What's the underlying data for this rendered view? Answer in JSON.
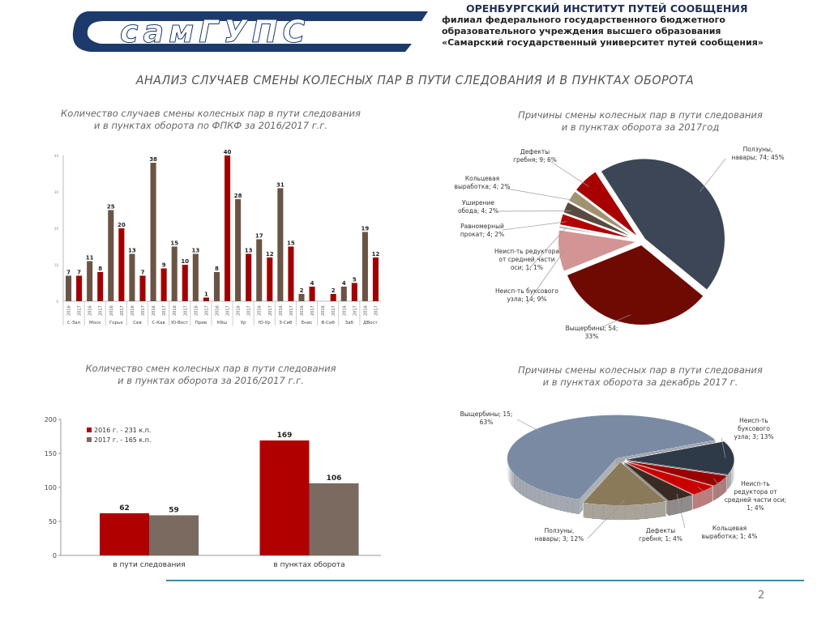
{
  "header": {
    "logo_text": "СамГУПС",
    "institute": "ОРЕНБУРГСКИЙ ИНСТИТУТ ПУТЕЙ СООБЩЕНИЯ",
    "lines": [
      "филиал федерального государственного бюджетного",
      "образовательного учреждения высшего образования",
      "«Самарский государственный университет путей сообщения»"
    ]
  },
  "slide_title": "АНАЛИЗ СЛУЧАЕВ СМЕНЫ КОЛЕСНЫХ ПАР В ПУТИ СЛЕДОВАНИЯ И В ПУНКТАХ ОБОРОТА",
  "page_number": "2",
  "colors": {
    "y2016": "#6b5444",
    "y2017": "#a00000",
    "accent_line": "#3b8ea5"
  },
  "chart_data": [
    {
      "type": "bar",
      "title": [
        "Количество случаев смены колесных пар в пути следования",
        "и в пунктах оборота по ФПКФ за 2016/2017 г.г."
      ],
      "categories": [
        "С-Зап",
        "Моск",
        "Горьк",
        "Сев",
        "С-Кав",
        "Ю-Вост",
        "Прив",
        "Кбш",
        "Ур",
        "Ю-Ур",
        "З-Сиб",
        "Енис",
        "В-Сиб",
        "Заб",
        "ДВост"
      ],
      "sub_labels": [
        "2016",
        "2017"
      ],
      "series": [
        {
          "name": "2016",
          "values": [
            7,
            11,
            25,
            13,
            38,
            15,
            13,
            8,
            28,
            17,
            31,
            2,
            null,
            4,
            19
          ]
        },
        {
          "name": "2017",
          "values": [
            7,
            8,
            20,
            7,
            9,
            10,
            1,
            40,
            13,
            12,
            15,
            4,
            2,
            5,
            12
          ]
        }
      ],
      "ylim": [
        0,
        40
      ],
      "yticks": [
        0,
        10,
        20,
        30,
        40
      ]
    },
    {
      "type": "pie",
      "title": [
        "Причины смены колесных пар в пути следования",
        "и в пунктах оборота за 2017год"
      ],
      "slices": [
        {
          "label": [
            "Ползуны,",
            "навары; 74; 45%"
          ],
          "value": 74,
          "color": "#3d4656"
        },
        {
          "label": [
            "Выщербины; 54;",
            "33%"
          ],
          "value": 54,
          "color": "#6e0a02"
        },
        {
          "label": [
            "Неисп-ть буксового",
            "узла; 14; 9%"
          ],
          "value": 14,
          "color": "#d29494"
        },
        {
          "label": [
            "Неисп-ть  редуктора",
            "от средней части",
            "оси; 1; 1%"
          ],
          "value": 1,
          "color": "#a8a8a8"
        },
        {
          "label": [
            "Равномерный",
            "прокат; 4; 2%"
          ],
          "value": 4,
          "color": "#b00000"
        },
        {
          "label": [
            "Уширение",
            "обода; 4; 2%"
          ],
          "value": 4,
          "color": "#5a4a40"
        },
        {
          "label": [
            "Кольцевая",
            "выработка; 4; 2%"
          ],
          "value": 4,
          "color": "#a39270"
        },
        {
          "label": [
            "Дефекты",
            "гребня; 9; 6%"
          ],
          "value": 9,
          "color": "#a80000"
        }
      ]
    },
    {
      "type": "bar",
      "title": [
        "Количество смен колесных пар в пути следования",
        "и в пунктах оборота за 2016/2017 г.г."
      ],
      "categories": [
        "в пути следования",
        "в пунктах оборота"
      ],
      "series": [
        {
          "name": "2016 г. - 231 к.п.",
          "values": [
            62,
            169
          ],
          "color": "#b00000"
        },
        {
          "name": "2017 г. - 165 к.п.",
          "values": [
            59,
            106
          ],
          "color": "#7a6a60"
        }
      ],
      "ylim": [
        0,
        200
      ],
      "yticks": [
        0,
        50,
        100,
        150,
        200
      ],
      "legend": "top-left"
    },
    {
      "type": "pie",
      "title": [
        "Причины смены колесных пар в пути следования",
        "и в пунктах оборота за декабрь 2017 г."
      ],
      "slices": [
        {
          "label": [
            "Выщербины; 15;",
            "63%"
          ],
          "value": 15,
          "color": "#7b8aa3"
        },
        {
          "label": [
            "Неисп-ть",
            "буксового",
            "узла; 3; 13%"
          ],
          "value": 3,
          "color": "#2f3a48"
        },
        {
          "label": [
            "Неисп-ть",
            "редуктора от",
            "средней части оси;",
            "1; 4%"
          ],
          "value": 1,
          "color": "#9a0000"
        },
        {
          "label": [
            "Кольцевая",
            "выработка; 1; 4%"
          ],
          "value": 1,
          "color": "#c80000"
        },
        {
          "label": [
            "Дефекты",
            "гребня; 1; 4%"
          ],
          "value": 1,
          "color": "#3a2a24"
        },
        {
          "label": [
            "Ползуны,",
            "навары; 3; 12%"
          ],
          "value": 3,
          "color": "#8a7a5a"
        }
      ]
    }
  ]
}
